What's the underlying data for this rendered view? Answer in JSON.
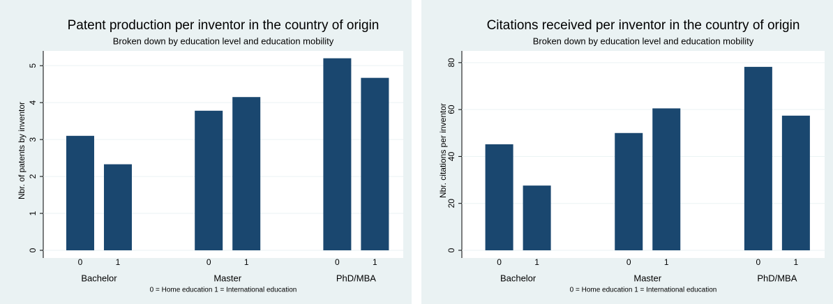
{
  "chart_data": [
    {
      "type": "bar",
      "title": "Patent production per inventor in the country of origin",
      "subtitle": "Broken down by education level and education mobility",
      "y_label": "Nbr. of patents by inventor",
      "note": "0 = Home education 1 = International education",
      "categories": [
        "Bachelor",
        "Master",
        "PhD/MBA"
      ],
      "series": [
        {
          "name": "0",
          "color": "#1a476f",
          "values": [
            3.1,
            3.78,
            5.2
          ]
        },
        {
          "name": "1",
          "color": "#1a476f",
          "values": [
            2.33,
            4.15,
            4.67
          ]
        }
      ],
      "ylim": [
        0,
        5.4
      ],
      "yticks": [
        0,
        1,
        2,
        3,
        4,
        5
      ],
      "grid": true
    },
    {
      "type": "bar",
      "title": "Citations received per inventor in the country of origin",
      "subtitle": "Broken down by education level and education mobility",
      "y_label": "Nbr. citations per inventor",
      "note": "0 = Home education 1 = International education",
      "categories": [
        "Bachelor",
        "Master",
        "PhD/MBA"
      ],
      "series": [
        {
          "name": "0",
          "color": "#1a476f",
          "values": [
            45.2,
            50,
            78.2
          ]
        },
        {
          "name": "1",
          "color": "#1a476f",
          "values": [
            27.6,
            60.5,
            57.4
          ]
        }
      ],
      "ylim": [
        0,
        85
      ],
      "yticks": [
        0,
        20,
        40,
        60,
        80
      ],
      "grid": true
    }
  ]
}
